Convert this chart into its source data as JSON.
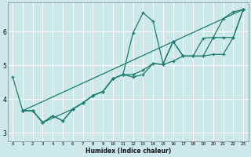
{
  "xlabel": "Humidex (Indice chaleur)",
  "xlim": [
    -0.5,
    23.5
  ],
  "ylim": [
    2.75,
    6.85
  ],
  "xticks": [
    0,
    1,
    2,
    3,
    4,
    5,
    6,
    7,
    8,
    9,
    10,
    11,
    12,
    13,
    14,
    15,
    16,
    17,
    18,
    19,
    20,
    21,
    22,
    23
  ],
  "yticks": [
    3,
    4,
    5,
    6
  ],
  "bg_color": "#cce8e8",
  "grid_color": "#b0d0d0",
  "line_color": "#1e7b6e",
  "lines": [
    {
      "x": [
        0,
        1,
        2,
        3,
        4,
        5,
        6,
        7,
        8,
        9,
        10,
        11,
        12,
        13,
        14,
        15,
        16,
        17,
        18,
        19,
        20,
        21,
        22,
        23
      ],
      "y": [
        4.65,
        3.65,
        3.65,
        3.3,
        3.5,
        3.35,
        3.7,
        3.88,
        4.1,
        4.22,
        4.6,
        4.72,
        5.95,
        6.55,
        6.3,
        5.05,
        5.7,
        5.27,
        5.27,
        5.8,
        5.82,
        6.38,
        6.58,
        6.65
      ]
    },
    {
      "x": [
        1,
        2,
        3,
        4,
        5,
        6,
        7,
        8,
        9,
        10,
        11,
        12,
        13,
        14,
        15,
        16,
        17,
        18,
        19,
        20,
        21,
        22,
        23
      ],
      "y": [
        3.65,
        3.65,
        3.3,
        3.5,
        3.35,
        3.7,
        3.88,
        4.1,
        4.22,
        4.6,
        4.72,
        4.65,
        4.72,
        5.05,
        5.02,
        5.7,
        5.27,
        5.27,
        5.27,
        5.82,
        5.82,
        5.82,
        6.65
      ]
    },
    {
      "x": [
        1,
        2,
        3,
        6,
        7,
        8,
        9,
        10,
        11,
        12,
        13,
        14,
        15,
        16,
        17,
        18,
        19,
        20,
        21,
        22,
        23
      ],
      "y": [
        3.65,
        3.65,
        3.3,
        3.7,
        3.88,
        4.1,
        4.22,
        4.6,
        4.72,
        4.72,
        4.85,
        5.05,
        5.02,
        5.12,
        5.27,
        5.27,
        5.27,
        5.32,
        5.32,
        5.82,
        6.65
      ]
    },
    {
      "x": [
        1,
        23
      ],
      "y": [
        3.65,
        6.65
      ]
    }
  ]
}
